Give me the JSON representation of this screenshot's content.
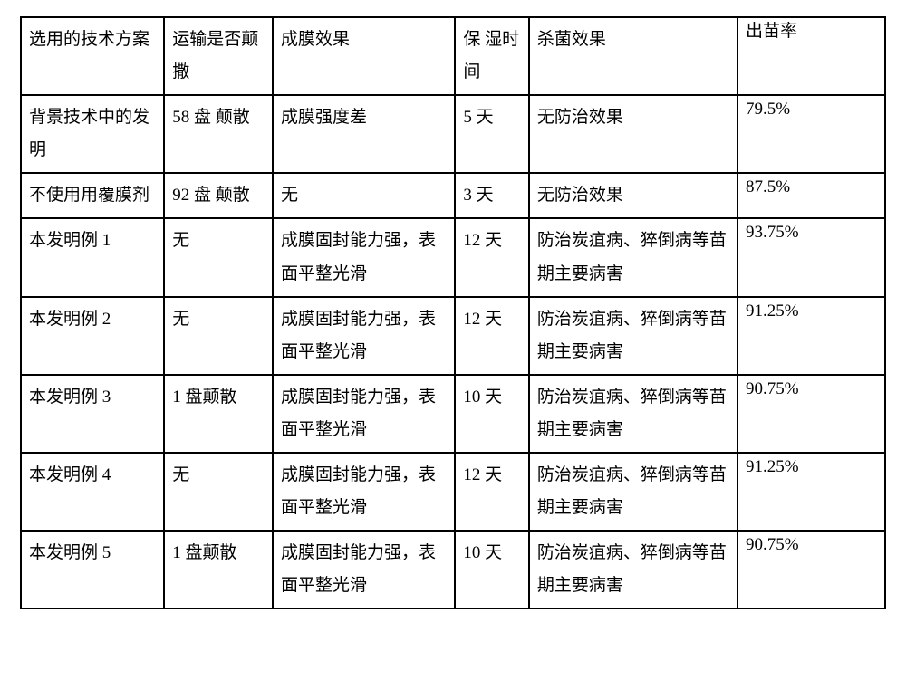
{
  "table": {
    "columns": [
      "选用的技术方案",
      "运输是否颠撒",
      "成膜效果",
      "保 湿时间",
      "杀菌效果",
      "出苗率"
    ],
    "column_widths_pct": [
      16.5,
      12.5,
      21,
      8.5,
      24,
      17
    ],
    "border_color": "#000000",
    "background_color": "#ffffff",
    "text_color": "#000000",
    "font_family": "SimSun",
    "font_size_pt": 14,
    "rows": [
      [
        "背景技术中的发明",
        "58 盘 颠散",
        "成膜强度差",
        "5 天",
        "无防治效果",
        "79.5%"
      ],
      [
        "不使用用覆膜剂",
        "92 盘 颠散",
        "无",
        "3 天",
        "无防治效果",
        "87.5%"
      ],
      [
        "本发明例 1",
        "无",
        "成膜固封能力强，表面平整光滑",
        "12 天",
        "防治炭疽病、猝倒病等苗期主要病害",
        "93.75%"
      ],
      [
        "本发明例 2",
        "无",
        "成膜固封能力强，表面平整光滑",
        "12 天",
        "防治炭疽病、猝倒病等苗期主要病害",
        "91.25%"
      ],
      [
        "本发明例 3",
        "1 盘颠散",
        "成膜固封能力强，表面平整光滑",
        "10 天",
        "防治炭疽病、猝倒病等苗期主要病害",
        "90.75%"
      ],
      [
        "本发明例 4",
        "无",
        "成膜固封能力强，表面平整光滑",
        "12 天",
        "防治炭疽病、猝倒病等苗期主要病害",
        "91.25%"
      ],
      [
        "本发明例 5",
        "1 盘颠散",
        "成膜固封能力强，表面平整光滑",
        "10 天",
        "防治炭疽病、猝倒病等苗期主要病害",
        "90.75%"
      ]
    ]
  }
}
